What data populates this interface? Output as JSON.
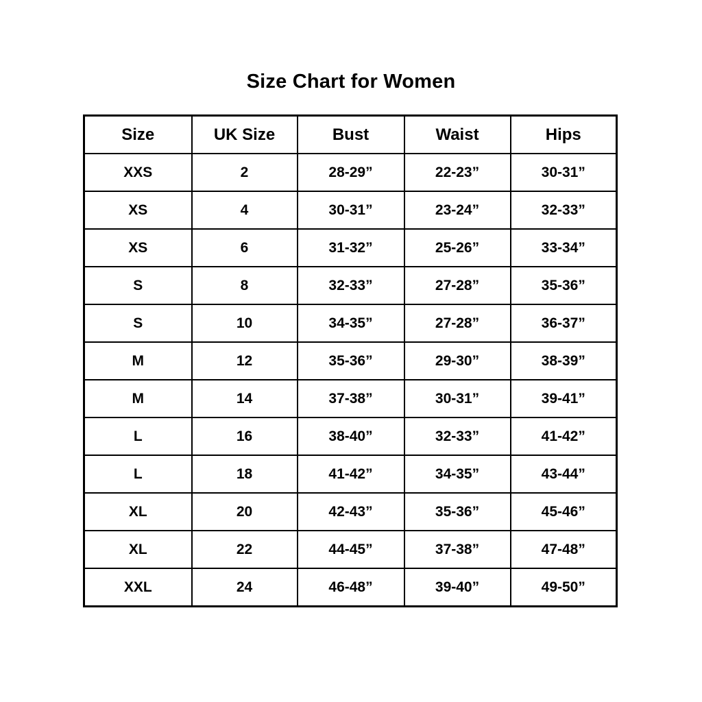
{
  "title": "Size Chart for Women",
  "chart_data": {
    "type": "table",
    "title": "Size Chart for Women",
    "columns": [
      "Size",
      "UK Size",
      "Bust",
      "Waist",
      "Hips"
    ],
    "rows": [
      [
        "XXS",
        "2",
        "28-29”",
        "22-23”",
        "30-31”"
      ],
      [
        "XS",
        "4",
        "30-31”",
        "23-24”",
        "32-33”"
      ],
      [
        "XS",
        "6",
        "31-32”",
        "25-26”",
        "33-34”"
      ],
      [
        "S",
        "8",
        "32-33”",
        "27-28”",
        "35-36”"
      ],
      [
        "S",
        "10",
        "34-35”",
        "27-28”",
        "36-37”"
      ],
      [
        "M",
        "12",
        "35-36”",
        "29-30”",
        "38-39”"
      ],
      [
        "M",
        "14",
        "37-38”",
        "30-31”",
        "39-41”"
      ],
      [
        "L",
        "16",
        "38-40”",
        "32-33”",
        "41-42”"
      ],
      [
        "L",
        "18",
        "41-42”",
        "34-35”",
        "43-44”"
      ],
      [
        "XL",
        "20",
        "42-43”",
        "35-36”",
        "45-46”"
      ],
      [
        "XL",
        "22",
        "44-45”",
        "37-38”",
        "47-48”"
      ],
      [
        "XXL",
        "24",
        "46-48”",
        "39-40”",
        "49-50”"
      ]
    ],
    "layout": {
      "grid": true,
      "border_color": "#000000",
      "background_color": "#ffffff",
      "text_color": "#000000",
      "header_position": "top"
    }
  }
}
